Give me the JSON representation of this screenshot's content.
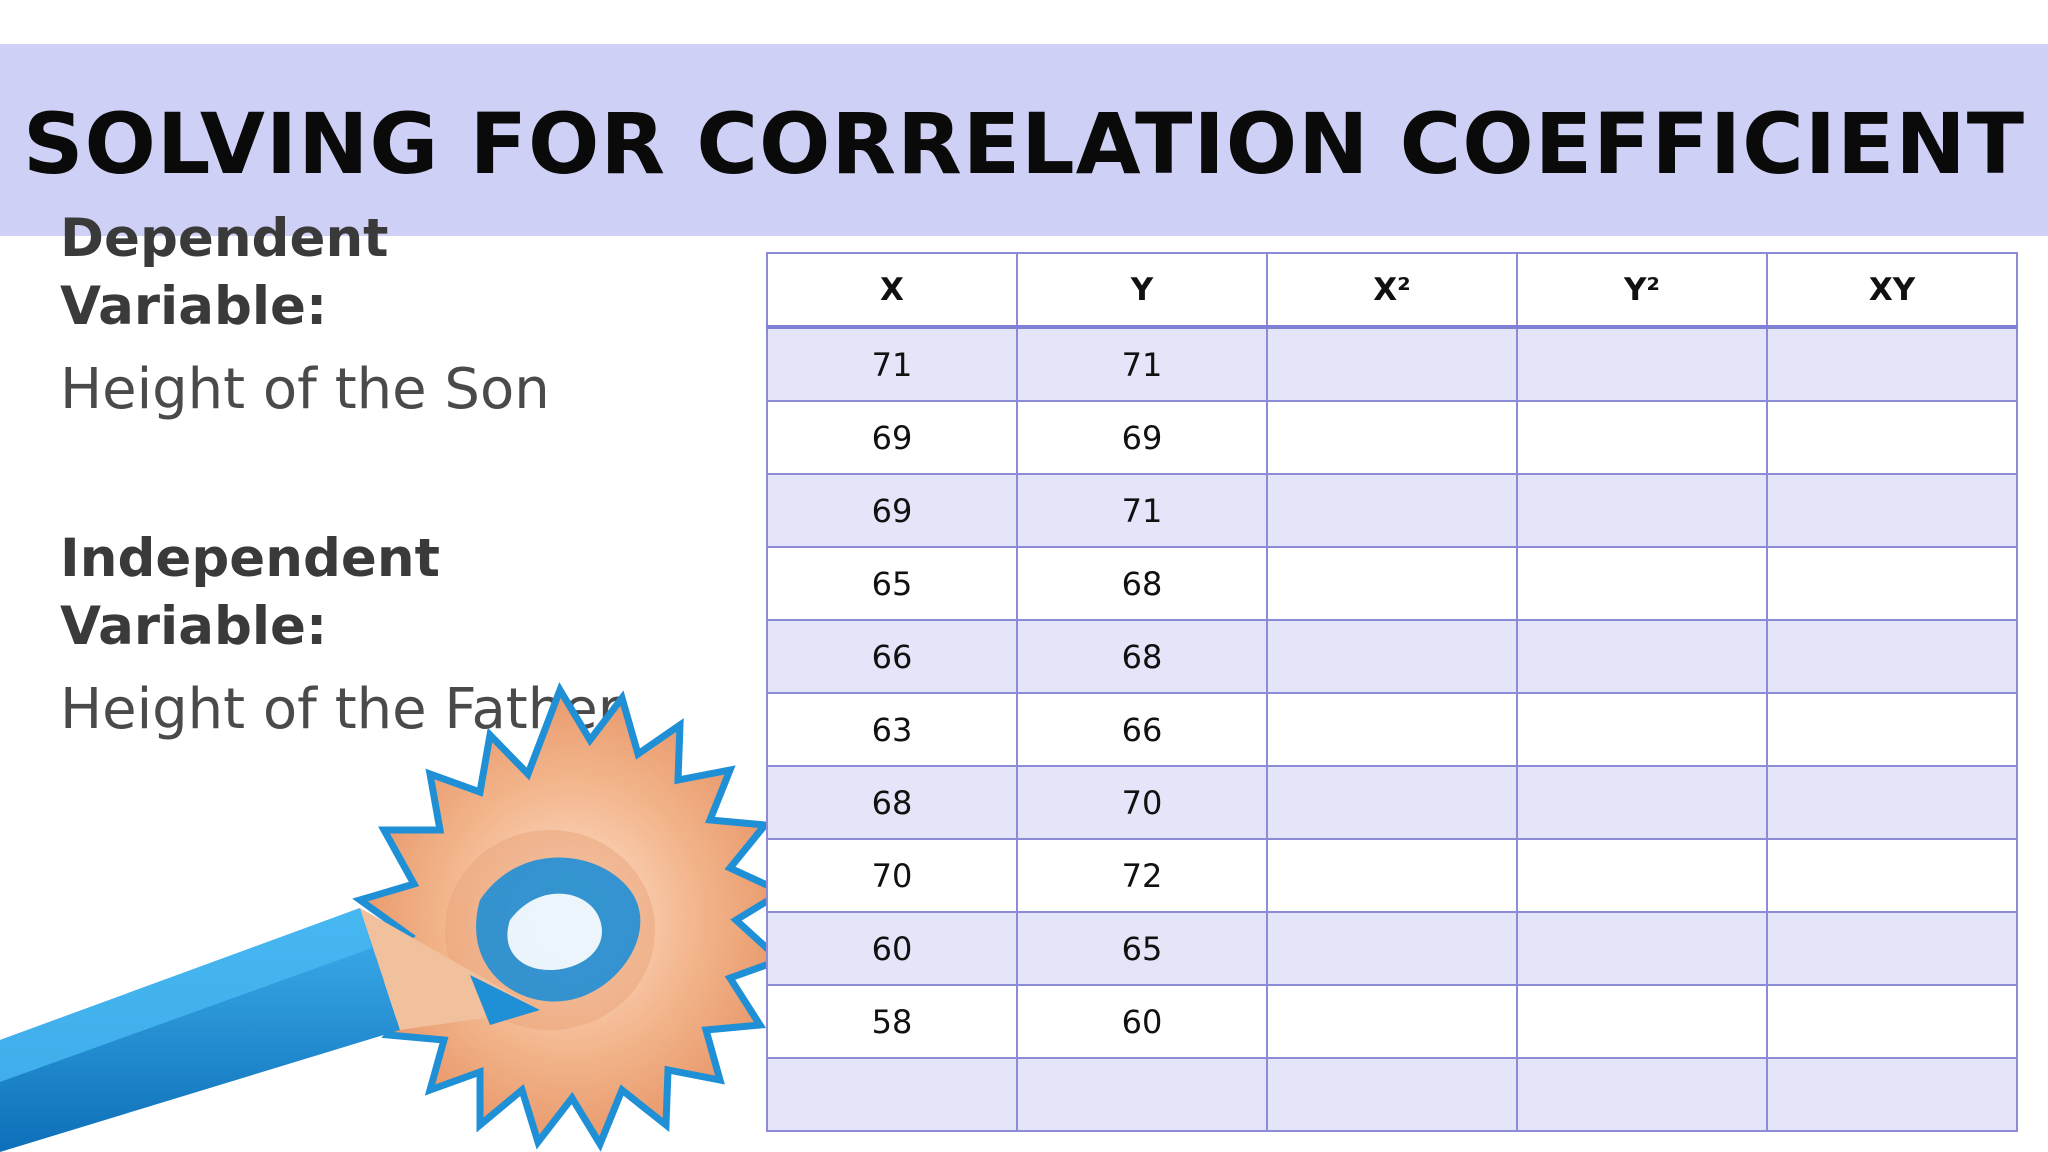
{
  "slide": {
    "title": "SOLVING FOR CORRELATION COEFFICIENT"
  },
  "variables": {
    "dependent_heading_line1": "Dependent",
    "dependent_heading_line2": "Variable:",
    "dependent_value": "Height of the Son",
    "independent_heading_line1": "Independent",
    "independent_heading_line2": "Variable:",
    "independent_value": "Height of the Father"
  },
  "table": {
    "headers": [
      "X",
      "Y",
      "X²",
      "Y²",
      "XY"
    ],
    "rows": [
      [
        "71",
        "71",
        "",
        "",
        ""
      ],
      [
        "69",
        "69",
        "",
        "",
        ""
      ],
      [
        "69",
        "71",
        "",
        "",
        ""
      ],
      [
        "65",
        "68",
        "",
        "",
        ""
      ],
      [
        "66",
        "68",
        "",
        "",
        ""
      ],
      [
        "63",
        "66",
        "",
        "",
        ""
      ],
      [
        "68",
        "70",
        "",
        "",
        ""
      ],
      [
        "70",
        "72",
        "",
        "",
        ""
      ],
      [
        "60",
        "65",
        "",
        "",
        ""
      ],
      [
        "58",
        "60",
        "",
        "",
        ""
      ],
      [
        "",
        "",
        "",
        "",
        ""
      ]
    ]
  },
  "colors": {
    "title_band": "#cfd0f5",
    "table_border": "#8b8bd8",
    "row_alt": "#e4e5f8",
    "pencil_blue": "#1f8fd6",
    "wood": "#f0b08a"
  },
  "icons": {
    "illustration": "pencil-shavings-icon"
  }
}
